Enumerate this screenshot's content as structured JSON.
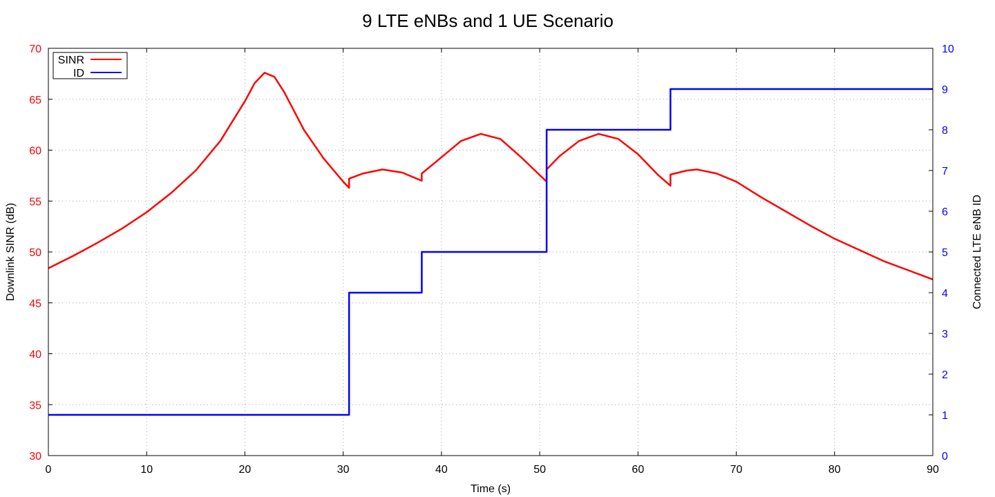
{
  "chart_data": {
    "type": "line",
    "title": "9 LTE eNBs and 1 UE Scenario",
    "xlabel": "Time (s)",
    "ylabel_left": "Downlink SINR (dB)",
    "ylabel_right": "Connected LTE eNB ID",
    "xlim": [
      0,
      90
    ],
    "ylim_left": [
      30,
      70
    ],
    "ylim_right": [
      0,
      10
    ],
    "x_ticks": [
      "0",
      "10",
      "20",
      "30",
      "40",
      "50",
      "60",
      "70",
      "80",
      "90"
    ],
    "y_left_ticks": [
      "30",
      "35",
      "40",
      "45",
      "50",
      "55",
      "60",
      "65",
      "70"
    ],
    "y_right_ticks": [
      "0",
      "1",
      "2",
      "3",
      "4",
      "5",
      "6",
      "7",
      "8",
      "9",
      "10"
    ],
    "grid": true,
    "legend_position": "top-left",
    "colors": {
      "sinr": "#ff0000",
      "id": "#0000ff",
      "left_axis": "#ff0000",
      "right_axis": "#0000ff"
    },
    "series": [
      {
        "name": "SINR",
        "axis": "left",
        "color": "#ff0000",
        "points": [
          [
            0,
            48.4
          ],
          [
            2.5,
            49.6
          ],
          [
            5,
            50.9
          ],
          [
            7.5,
            52.3
          ],
          [
            10,
            53.9
          ],
          [
            12.5,
            55.8
          ],
          [
            15,
            58.0
          ],
          [
            17.5,
            60.9
          ],
          [
            20,
            64.8
          ],
          [
            21,
            66.6
          ],
          [
            22,
            67.6
          ],
          [
            23,
            67.2
          ],
          [
            24,
            65.7
          ],
          [
            26,
            62.0
          ],
          [
            28,
            59.2
          ],
          [
            30,
            56.9
          ],
          [
            30.6,
            56.3
          ],
          [
            30.6,
            57.2
          ],
          [
            32,
            57.7
          ],
          [
            34,
            58.1
          ],
          [
            36,
            57.8
          ],
          [
            38,
            57.0
          ],
          [
            38,
            57.7
          ],
          [
            40,
            59.3
          ],
          [
            42,
            60.9
          ],
          [
            44,
            61.6
          ],
          [
            46,
            61.1
          ],
          [
            48,
            59.4
          ],
          [
            50.7,
            56.9
          ],
          [
            50.7,
            58.1
          ],
          [
            52,
            59.4
          ],
          [
            54,
            60.9
          ],
          [
            56,
            61.6
          ],
          [
            58,
            61.1
          ],
          [
            60,
            59.6
          ],
          [
            62,
            57.6
          ],
          [
            63.3,
            56.5
          ],
          [
            63.3,
            57.6
          ],
          [
            65,
            58.0
          ],
          [
            66,
            58.1
          ],
          [
            68,
            57.7
          ],
          [
            70,
            56.9
          ],
          [
            72.5,
            55.4
          ],
          [
            75,
            54.0
          ],
          [
            77.5,
            52.6
          ],
          [
            80,
            51.3
          ],
          [
            82.5,
            50.2
          ],
          [
            85,
            49.1
          ],
          [
            87.5,
            48.2
          ],
          [
            90,
            47.3
          ]
        ]
      },
      {
        "name": "ID",
        "axis": "right",
        "color": "#0000ff",
        "points": [
          [
            0,
            1
          ],
          [
            30.6,
            1
          ],
          [
            30.6,
            4
          ],
          [
            38,
            4
          ],
          [
            38,
            5
          ],
          [
            50.7,
            5
          ],
          [
            50.7,
            8
          ],
          [
            63.3,
            8
          ],
          [
            63.3,
            9
          ],
          [
            90,
            9
          ]
        ]
      }
    ]
  }
}
